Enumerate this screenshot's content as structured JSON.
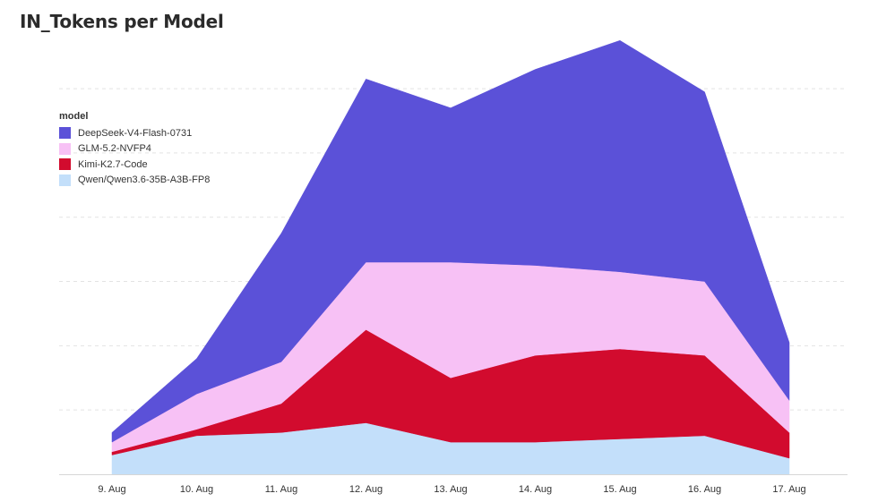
{
  "chart_data": {
    "type": "area",
    "stacked": true,
    "title": "IN_Tokens per Model",
    "legend_title": "model",
    "legend_position": "top-left",
    "grid": true,
    "categories": [
      "9. Aug",
      "10. Aug",
      "11. Aug",
      "12. Aug",
      "13. Aug",
      "14. Aug",
      "15. Aug",
      "16. Aug",
      "17. Aug"
    ],
    "series": [
      {
        "name": "Qwen/Qwen3.6-35B-A3B-FP8",
        "color": "#c3dffa",
        "values": [
          3,
          6,
          6.5,
          8,
          5,
          5,
          5.5,
          6,
          2.5
        ]
      },
      {
        "name": "Kimi-K2.7-Code",
        "color": "#d20b2e",
        "values": [
          0.5,
          1,
          4.5,
          14.5,
          10,
          13.5,
          14,
          12.5,
          4
        ]
      },
      {
        "name": "GLM-5.2-NVFP4",
        "color": "#f7c1f5",
        "values": [
          1.5,
          5.5,
          6.5,
          10.5,
          18,
          14,
          12,
          11.5,
          5
        ]
      },
      {
        "name": "DeepSeek-V4-Flash-0731",
        "color": "#5b51d8",
        "values": [
          1.5,
          5.5,
          20,
          28.5,
          24,
          30.5,
          36,
          29.5,
          9
        ]
      }
    ]
  }
}
